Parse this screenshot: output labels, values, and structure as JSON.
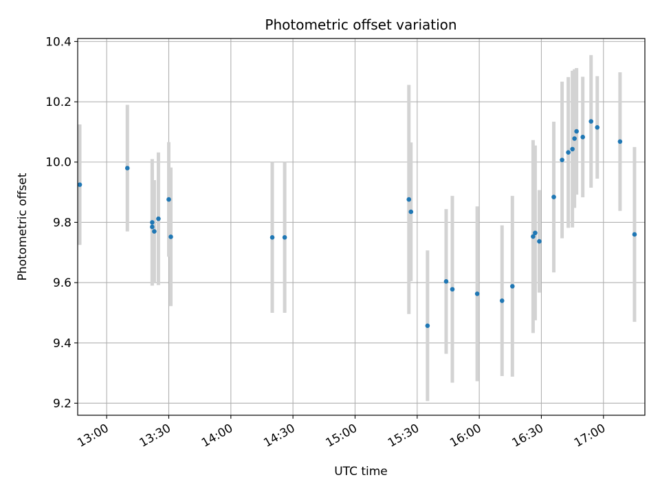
{
  "chart_data": {
    "type": "scatter",
    "title": "Photometric offset variation",
    "xlabel": "UTC time",
    "ylabel": "Photometric offset",
    "x_tick_labels": [
      "13:00",
      "13:30",
      "14:00",
      "14:30",
      "15:00",
      "15:30",
      "16:00",
      "16:30",
      "17:00"
    ],
    "y_ticks": [
      9.2,
      9.4,
      9.6,
      9.8,
      10.0,
      10.2,
      10.4
    ],
    "y_tick_labels": [
      "9.2",
      "9.4",
      "9.6",
      "9.8",
      "10.0",
      "10.2",
      "10.4"
    ],
    "xlim": [
      "12:46",
      "17:20"
    ],
    "ylim": [
      9.16,
      10.41
    ],
    "grid": true,
    "point_color": "#1f77b4",
    "errorbar_color": "#d3d3d3",
    "points": [
      {
        "x": "12:47",
        "y": 9.925,
        "yerr": 0.2
      },
      {
        "x": "13:10",
        "y": 9.98,
        "yerr": 0.21
      },
      {
        "x": "13:22",
        "y": 9.8,
        "yerr": 0.21
      },
      {
        "x": "13:22",
        "y": 9.785,
        "yerr": 0.19
      },
      {
        "x": "13:23",
        "y": 9.77,
        "yerr": 0.17
      },
      {
        "x": "13:25",
        "y": 9.812,
        "yerr": 0.22
      },
      {
        "x": "13:30",
        "y": 9.876,
        "yerr": 0.19
      },
      {
        "x": "13:31",
        "y": 9.752,
        "yerr": 0.23
      },
      {
        "x": "14:20",
        "y": 9.75,
        "yerr": 0.25
      },
      {
        "x": "14:26",
        "y": 9.75,
        "yerr": 0.25
      },
      {
        "x": "15:26",
        "y": 9.876,
        "yerr": 0.38
      },
      {
        "x": "15:27",
        "y": 9.835,
        "yerr": 0.23
      },
      {
        "x": "15:35",
        "y": 9.457,
        "yerr": 0.25
      },
      {
        "x": "15:44",
        "y": 9.604,
        "yerr": 0.24
      },
      {
        "x": "15:47",
        "y": 9.578,
        "yerr": 0.31
      },
      {
        "x": "15:59",
        "y": 9.563,
        "yerr": 0.29
      },
      {
        "x": "16:11",
        "y": 9.54,
        "yerr": 0.25
      },
      {
        "x": "16:16",
        "y": 9.588,
        "yerr": 0.3
      },
      {
        "x": "16:26",
        "y": 9.753,
        "yerr": 0.32
      },
      {
        "x": "16:27",
        "y": 9.765,
        "yerr": 0.29
      },
      {
        "x": "16:29",
        "y": 9.737,
        "yerr": 0.17
      },
      {
        "x": "16:36",
        "y": 9.884,
        "yerr": 0.25
      },
      {
        "x": "16:40",
        "y": 10.007,
        "yerr": 0.26
      },
      {
        "x": "16:43",
        "y": 10.032,
        "yerr": 0.25
      },
      {
        "x": "16:45",
        "y": 10.043,
        "yerr": 0.26
      },
      {
        "x": "16:46",
        "y": 10.078,
        "yerr": 0.23
      },
      {
        "x": "16:47",
        "y": 10.102,
        "yerr": 0.21
      },
      {
        "x": "16:50",
        "y": 10.083,
        "yerr": 0.2
      },
      {
        "x": "16:54",
        "y": 10.135,
        "yerr": 0.22
      },
      {
        "x": "16:57",
        "y": 10.115,
        "yerr": 0.17
      },
      {
        "x": "17:08",
        "y": 10.068,
        "yerr": 0.23
      },
      {
        "x": "17:15",
        "y": 9.76,
        "yerr": 0.29
      }
    ]
  }
}
